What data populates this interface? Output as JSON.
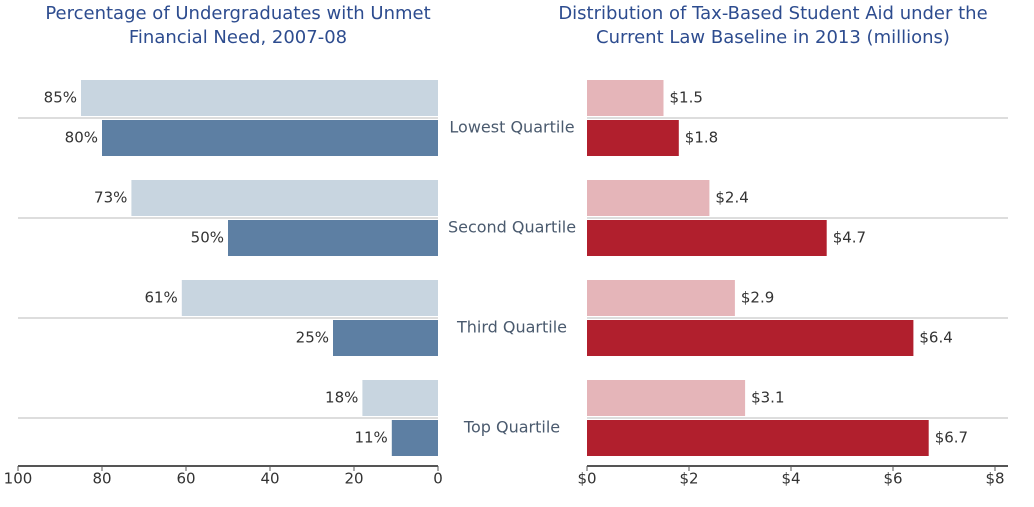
{
  "chart_data": [
    {
      "type": "bar",
      "orientation": "horizontal",
      "title": "Percentage of Undergraduates with Unmet Financial Need, 2007-08",
      "categories": [
        "Lowest Quartile",
        "Second Quartile",
        "Third Quartile",
        "Top Quartile"
      ],
      "series": [
        {
          "color": "#c8d5e0",
          "values": [
            85,
            73,
            61,
            18
          ],
          "value_labels": [
            "85%",
            "73%",
            "61%",
            "18%"
          ]
        },
        {
          "color": "#5d7fa3",
          "values": [
            80,
            50,
            25,
            11
          ],
          "value_labels": [
            "80%",
            "50%",
            "25%",
            "11%"
          ]
        }
      ],
      "xlim": [
        100,
        0
      ],
      "xticks": [
        100,
        80,
        60,
        40,
        20,
        0
      ]
    },
    {
      "type": "bar",
      "orientation": "horizontal",
      "title": "Distribution of Tax-Based Student Aid under the Current Law Baseline in 2013 (millions)",
      "series": [
        {
          "color": "#e5b5b9",
          "values": [
            1.5,
            2.4,
            2.9,
            3.1
          ],
          "value_labels": [
            "$1.5",
            "$2.4",
            "$2.9",
            "$3.1"
          ]
        },
        {
          "color": "#b11f2d",
          "values": [
            1.8,
            4.7,
            6.4,
            6.7
          ],
          "value_labels": [
            "$1.8",
            "$4.7",
            "$6.4",
            "$6.7"
          ]
        }
      ],
      "xlim": [
        0,
        8
      ],
      "xticks": [
        {
          "value": 0,
          "label": "$0"
        },
        {
          "value": 2,
          "label": "$2"
        },
        {
          "value": 4,
          "label": "$4"
        },
        {
          "value": 6,
          "label": "$6"
        },
        {
          "value": 8,
          "label": "$8"
        }
      ]
    }
  ]
}
